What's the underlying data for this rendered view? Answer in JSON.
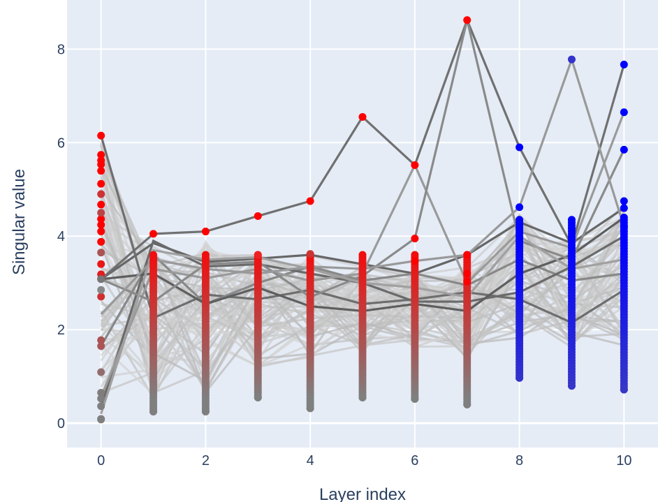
{
  "chart_data": {
    "type": "line",
    "xlabel": "Layer index",
    "ylabel": "Singular value",
    "xlim": [
      -0.65,
      10.65
    ],
    "ylim": [
      -0.52,
      9.05
    ],
    "x_ticks": [
      "0",
      "2",
      "4",
      "6",
      "8",
      "10"
    ],
    "y_ticks": [
      "0",
      "2",
      "4",
      "6",
      "8"
    ],
    "grid": true,
    "legend": "none",
    "layers": [
      0,
      1,
      2,
      3,
      4,
      5,
      6,
      7,
      8,
      9,
      10
    ],
    "highlight_paths": [
      {
        "values": [
          3.08,
          3.85,
          3.45,
          3.52,
          3.6,
          3.4,
          3.2,
          3.6,
          4.3,
          3.85,
          4.6
        ],
        "shade": "#666666"
      },
      {
        "values": [
          3.08,
          4.05,
          4.1,
          4.43,
          4.75,
          6.55,
          5.52,
          8.62,
          5.9,
          3.8,
          7.67
        ],
        "shade": "#707070"
      },
      {
        "values": [
          6.15,
          2.25,
          2.75,
          2.65,
          2.85,
          2.55,
          2.65,
          2.8,
          2.65,
          2.15,
          2.85
        ],
        "shade": "#6e6e6e"
      },
      {
        "values": [
          1.65,
          3.6,
          2.55,
          3.0,
          3.35,
          3.05,
          3.2,
          2.95,
          3.5,
          3.05,
          3.2
        ],
        "shade": "#888888"
      },
      {
        "values": [
          0.35,
          3.9,
          3.35,
          3.4,
          3.2,
          3.0,
          2.6,
          2.6,
          2.8,
          3.35,
          4.0
        ],
        "shade": "#6a6a6a"
      },
      {
        "values": [
          3.08,
          3.2,
          2.55,
          2.9,
          2.5,
          2.4,
          2.55,
          2.4,
          3.2,
          3.6,
          4.4
        ],
        "shade": "#5e5e5e"
      },
      {
        "values": [
          0.55,
          3.3,
          3.1,
          3.3,
          3.05,
          3.2,
          5.52,
          3.0,
          4.1,
          3.75,
          6.65
        ],
        "shade": "#9a9a9a"
      },
      {
        "values": [
          3.08,
          2.6,
          3.4,
          3.45,
          2.7,
          3.15,
          3.95,
          8.62,
          3.9,
          3.5,
          5.85
        ],
        "shade": "#8a8a8a"
      },
      {
        "values": [
          2.33,
          3.5,
          3.3,
          3.2,
          3.35,
          3.3,
          3.47,
          3.6,
          4.62,
          7.78,
          4.2
        ],
        "shade": "#999999"
      },
      {
        "values": [
          0.2,
          3.7,
          3.5,
          3.55,
          3.3,
          3.0,
          2.9,
          2.7,
          4.0,
          3.3,
          3.5
        ],
        "shade": "#a0a0a0"
      }
    ],
    "background_path_count": 70,
    "notable_points": [
      {
        "layer": 0,
        "value": 6.15
      },
      {
        "layer": 0,
        "value": 5.62
      },
      {
        "layer": 0,
        "value": 5.12
      },
      {
        "layer": 1,
        "value": 4.05
      },
      {
        "layer": 2,
        "value": 4.1
      },
      {
        "layer": 3,
        "value": 4.43
      },
      {
        "layer": 4,
        "value": 4.75
      },
      {
        "layer": 5,
        "value": 6.55
      },
      {
        "layer": 6,
        "value": 5.52
      },
      {
        "layer": 7,
        "value": 8.62
      },
      {
        "layer": 8,
        "value": 5.9
      },
      {
        "layer": 9,
        "value": 7.78
      },
      {
        "layer": 10,
        "value": 7.67
      },
      {
        "layer": 10,
        "value": 6.65
      },
      {
        "layer": 10,
        "value": 5.85
      }
    ],
    "point_ranges": [
      {
        "layer": 0,
        "min": 0.08,
        "max": 6.15
      },
      {
        "layer": 1,
        "min": 0.25,
        "max": 4.05
      },
      {
        "layer": 2,
        "min": 0.25,
        "max": 4.1
      },
      {
        "layer": 3,
        "min": 0.55,
        "max": 4.43
      },
      {
        "layer": 4,
        "min": 0.32,
        "max": 4.75
      },
      {
        "layer": 5,
        "min": 0.55,
        "max": 6.55
      },
      {
        "layer": 6,
        "min": 0.52,
        "max": 5.52
      },
      {
        "layer": 7,
        "min": 0.4,
        "max": 8.62
      },
      {
        "layer": 8,
        "min": 0.97,
        "max": 5.9
      },
      {
        "layer": 9,
        "min": 0.8,
        "max": 7.78
      },
      {
        "layer": 10,
        "min": 0.72,
        "max": 7.67
      }
    ]
  },
  "colors": {
    "plot_bg": "#e5ecf6",
    "grid": "#ffffff",
    "text": "#2a3f5f",
    "red": "#ff0000",
    "blue": "#0000ff",
    "gray": "#7f7f7f",
    "background_line": "#c8c8c8"
  }
}
